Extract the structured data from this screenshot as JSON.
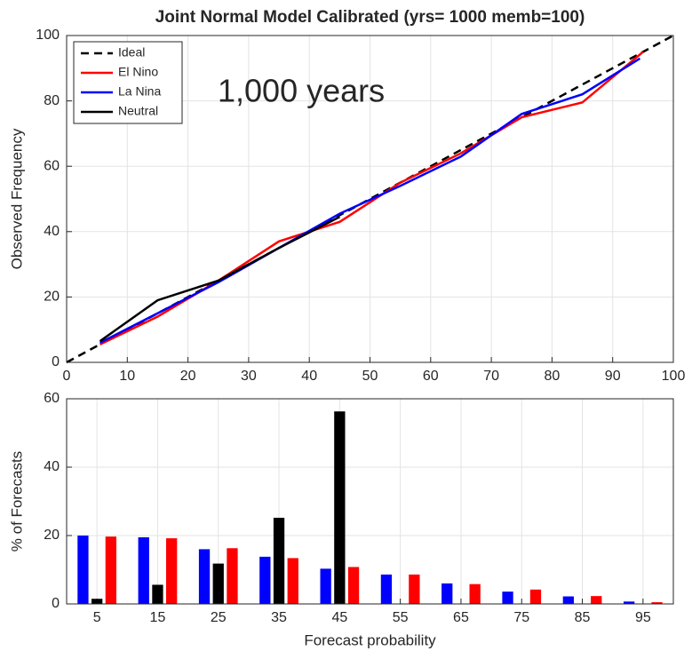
{
  "chart_data": [
    {
      "type": "line",
      "title": "Joint Normal Model Calibrated (yrs= 1000 memb=100)",
      "y_label": "Observed Frequency",
      "annotation": "1,000 years",
      "xlim": [
        0,
        100
      ],
      "xticks": [
        0,
        10,
        20,
        30,
        40,
        50,
        60,
        70,
        80,
        90,
        100
      ],
      "ylim": [
        0,
        100
      ],
      "yticks": [
        0,
        20,
        40,
        60,
        80,
        100
      ],
      "grid": true,
      "legend": "upper left",
      "series": [
        {
          "name": "Ideal",
          "color": "#000000",
          "style": "dashed",
          "x": [
            0,
            100
          ],
          "values": [
            0,
            100
          ]
        },
        {
          "name": "El Nino",
          "color": "#ff0000",
          "style": "solid",
          "x": [
            5.5,
            15,
            25,
            35,
            45,
            55,
            65,
            75,
            85,
            95
          ],
          "values": [
            5.5,
            14,
            25,
            37,
            43,
            55,
            64,
            75,
            79.5,
            95
          ]
        },
        {
          "name": "La Nina",
          "color": "#0000ff",
          "style": "solid",
          "x": [
            5.5,
            15,
            25,
            35,
            45,
            55,
            65,
            75,
            85,
            94.5
          ],
          "values": [
            6,
            15,
            24.5,
            35,
            45.5,
            54,
            63,
            76,
            82,
            93
          ]
        },
        {
          "name": "Neutral",
          "color": "#000000",
          "style": "solid",
          "x": [
            5.5,
            15,
            25,
            35,
            45
          ],
          "values": [
            6.5,
            19,
            25,
            35,
            44.5
          ]
        }
      ]
    },
    {
      "type": "bar",
      "x_label": "Forecast probability",
      "y_label": "% of Forecasts",
      "xlim": [
        0,
        100
      ],
      "xticks": [
        5,
        15,
        25,
        35,
        45,
        55,
        65,
        75,
        85,
        95
      ],
      "ylim": [
        0,
        60
      ],
      "yticks": [
        0,
        20,
        40,
        60
      ],
      "grid": true,
      "x": [
        5,
        15,
        25,
        35,
        45,
        55,
        65,
        75,
        85,
        95
      ],
      "series": [
        {
          "color": "#0000ff",
          "values": [
            20,
            19.5,
            16,
            13.8,
            10.3,
            8.6,
            6,
            3.6,
            2.2,
            0.7
          ]
        },
        {
          "color": "#000000",
          "values": [
            1.5,
            5.6,
            11.8,
            25.2,
            56.3,
            0,
            0,
            0,
            0,
            0
          ]
        },
        {
          "color": "#ff0000",
          "values": [
            19.7,
            19.2,
            16.3,
            13.4,
            10.8,
            8.6,
            5.8,
            4.2,
            2.3,
            0.5
          ]
        }
      ]
    }
  ]
}
